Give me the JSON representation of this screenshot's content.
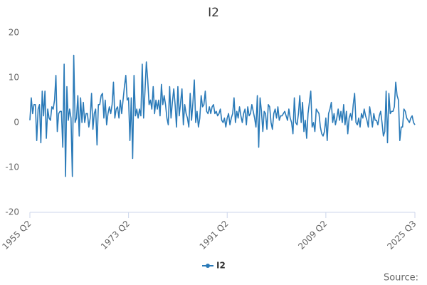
{
  "chart_data": {
    "type": "line",
    "title": "I2",
    "source": "Source:",
    "categories": [
      "1955 Q2",
      null,
      null,
      null,
      null,
      null,
      null,
      null,
      null,
      null,
      null,
      null,
      null,
      null,
      null,
      null,
      null,
      null,
      null,
      null,
      null,
      null,
      null,
      null,
      null,
      null,
      null,
      null,
      null,
      null,
      null,
      null,
      null,
      null,
      null,
      null,
      null,
      null,
      null,
      null,
      null,
      null,
      null,
      null,
      null,
      null,
      null,
      null,
      null,
      null,
      null,
      null,
      null,
      null,
      null,
      null,
      null,
      null,
      null,
      null,
      null,
      null,
      null,
      null,
      null,
      null,
      null,
      null,
      null,
      null,
      null,
      null,
      "1973 Q2",
      null,
      null,
      null,
      null,
      null,
      null,
      null,
      null,
      null,
      null,
      null,
      null,
      null,
      null,
      null,
      null,
      null,
      null,
      null,
      null,
      null,
      null,
      null,
      null,
      null,
      null,
      null,
      null,
      null,
      null,
      null,
      null,
      null,
      null,
      null,
      null,
      null,
      null,
      null,
      null,
      null,
      null,
      null,
      null,
      null,
      null,
      null,
      null,
      null,
      null,
      null,
      null,
      null,
      null,
      null,
      null,
      null,
      null,
      null,
      null,
      null,
      null,
      null,
      null,
      null,
      null,
      null,
      null,
      null,
      null,
      null,
      "1991 Q2",
      null,
      null,
      null,
      null,
      null,
      null,
      null,
      null,
      null,
      null,
      null,
      null,
      null,
      null,
      null,
      null,
      null,
      null,
      null,
      null,
      null,
      null,
      null,
      null,
      null,
      null,
      null,
      null,
      null,
      null,
      null,
      null,
      null,
      null,
      null,
      null,
      null,
      null,
      null,
      null,
      null,
      null,
      null,
      null,
      null,
      null,
      null,
      null,
      null,
      null,
      null,
      null,
      null,
      null,
      null,
      null,
      null,
      null,
      null,
      null,
      null,
      null,
      null,
      null,
      null,
      null,
      null,
      null,
      null,
      null,
      null,
      "2009 Q2",
      null,
      null,
      null,
      null,
      null,
      null,
      null,
      null,
      null,
      null,
      null,
      null,
      null,
      null,
      null,
      null,
      null,
      null,
      null,
      null,
      null,
      null,
      null,
      null,
      null,
      null,
      null,
      null,
      null,
      null,
      null,
      null,
      null,
      null,
      null,
      null,
      null,
      null,
      null,
      null,
      null,
      null,
      null,
      null,
      null,
      null,
      null,
      null,
      null,
      null,
      null,
      null,
      null,
      null,
      null,
      null,
      null,
      null,
      null,
      null,
      null,
      null,
      null,
      null,
      "2025 Q3"
    ],
    "series": [
      {
        "name": "I2",
        "color": "#2a7ab8",
        "values": [
          0.5,
          5.5,
          2,
          4,
          4,
          -4,
          3,
          4,
          -4.5,
          7,
          1.5,
          7,
          -3.5,
          3,
          1,
          0.5,
          3.5,
          3,
          5,
          10.5,
          -2,
          2,
          2.5,
          2.5,
          -5.5,
          13,
          -12,
          8,
          0.5,
          3,
          1,
          -12,
          15,
          0,
          1,
          6,
          -3,
          5.5,
          0,
          4.5,
          0,
          2,
          2,
          -1,
          1,
          6.5,
          -1.5,
          2,
          3,
          -5,
          4,
          4,
          6,
          6.5,
          1,
          5,
          -0.5,
          2,
          3.5,
          2,
          4,
          9,
          1,
          3,
          3.5,
          1,
          5,
          2,
          5,
          8,
          10.5,
          5,
          5.5,
          -4,
          5.5,
          -8,
          10.5,
          1.5,
          3,
          1,
          3,
          1.5,
          13,
          1,
          7,
          13.5,
          9.5,
          4,
          5,
          3,
          8,
          2,
          5,
          3,
          5,
          1.5,
          8.5,
          4,
          6,
          4,
          1,
          -0.5,
          8,
          1,
          4.5,
          7.5,
          4,
          -1,
          8,
          1.5,
          4.5,
          7.5,
          -0.5,
          4,
          2,
          1,
          -1,
          6.5,
          0.5,
          4.5,
          9.5,
          0,
          2.5,
          -1,
          1,
          6,
          3.5,
          4,
          7,
          2.5,
          2,
          3.5,
          2,
          3.5,
          4,
          2,
          2.5,
          1.5,
          2,
          3,
          0.5,
          0,
          1,
          -1,
          1,
          2,
          -0.5,
          1,
          2,
          5.5,
          0,
          2.5,
          1,
          3.5,
          1.5,
          0,
          2,
          3,
          -0.5,
          3.5,
          1.5,
          2,
          4,
          2.5,
          1,
          -1,
          6,
          -5.5,
          5.5,
          2.5,
          -2,
          2.5,
          2,
          -1.5,
          4,
          3.5,
          0,
          -1.5,
          2,
          3,
          1,
          3.5,
          0.5,
          1.5,
          1.5,
          2,
          2.5,
          1.5,
          0.5,
          3,
          1,
          0,
          -2.5,
          5.5,
          0,
          -0.5,
          2,
          6,
          0,
          4.5,
          -2,
          0.5,
          -3.5,
          2,
          4.5,
          7,
          -1,
          0,
          -2,
          3,
          2.5,
          2,
          -1,
          -2.5,
          -3,
          -2,
          1,
          -4,
          2,
          3,
          4.5,
          0,
          2,
          -0.5,
          1,
          3,
          0.5,
          2.5,
          0,
          4,
          -0.5,
          2.5,
          -2.5,
          1,
          2,
          0.5,
          4,
          6.5,
          0,
          -0.5,
          1,
          -1,
          2,
          1,
          3,
          1.5,
          0.5,
          -1,
          3.5,
          1.5,
          -1,
          2,
          0.5,
          0.5,
          -0.5,
          1.5,
          2.5,
          0,
          -3,
          -2,
          7,
          -4.5,
          6.5,
          2,
          2.5,
          2.5,
          3.5,
          9,
          6,
          5,
          -4,
          -1,
          -1,
          3,
          2.5,
          1,
          0.5,
          0,
          1,
          1.5,
          0,
          -0.5
        ]
      }
    ],
    "ylim": [
      -20,
      20
    ],
    "yticks": [
      -20,
      -10,
      0,
      10,
      20
    ],
    "grid": false,
    "legend": "bottom"
  }
}
